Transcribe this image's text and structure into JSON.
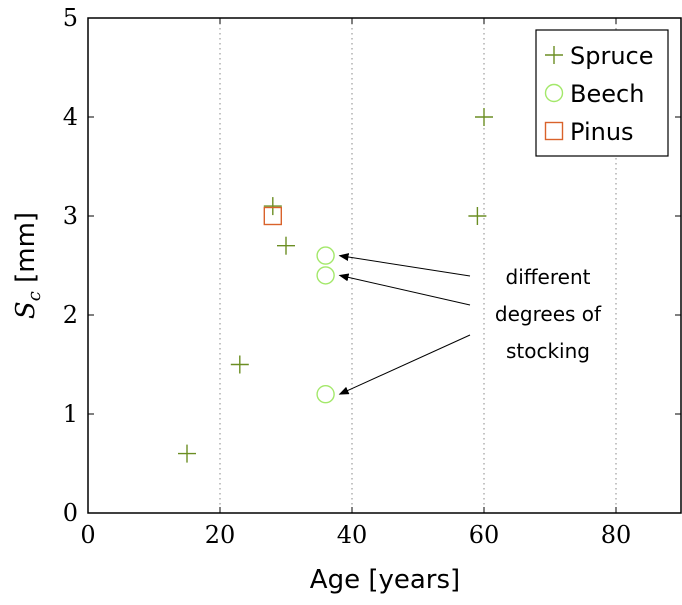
{
  "chart_data": {
    "type": "scatter",
    "xlabel": "Age [years]",
    "ylabel_main": "S",
    "ylabel_sub": "c",
    "ylabel_unit": " [mm]",
    "xlim": [
      0,
      90
    ],
    "ylim": [
      0,
      5
    ],
    "x_ticks": [
      0,
      20,
      40,
      60,
      80
    ],
    "y_ticks": [
      0,
      1,
      2,
      3,
      4,
      5
    ],
    "x_grid": true,
    "y_grid": false,
    "legend_position": "top-right",
    "series": [
      {
        "name": "Spruce",
        "marker": "plus",
        "color": "#6b8e23",
        "points": [
          [
            15,
            0.6
          ],
          [
            23,
            1.5
          ],
          [
            28,
            3.1
          ],
          [
            30,
            2.7
          ],
          [
            59,
            3.0
          ],
          [
            60,
            4.0
          ]
        ]
      },
      {
        "name": "Beech",
        "marker": "circle",
        "color": "#a3e86a",
        "points": [
          [
            36,
            2.6
          ],
          [
            36,
            2.4
          ],
          [
            36,
            1.2
          ]
        ]
      },
      {
        "name": "Pinus",
        "marker": "square",
        "color": "#d9622b",
        "points": [
          [
            28,
            3.0
          ]
        ]
      }
    ],
    "annotation": {
      "lines": [
        "different",
        "degrees of",
        "stocking"
      ],
      "arrow_targets": [
        [
          36,
          2.6
        ],
        [
          36,
          2.4
        ],
        [
          36,
          1.2
        ]
      ]
    }
  }
}
